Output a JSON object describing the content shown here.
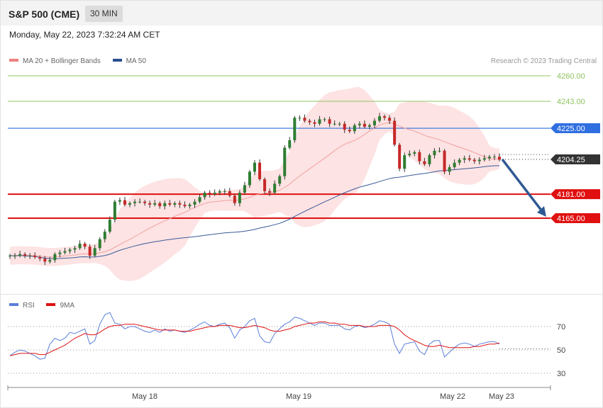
{
  "header": {
    "title": "S&P 500 (CME)",
    "timeframe": "30 MIN",
    "timestamp": "Monday, May 22, 2023 7:32:24 AM CET",
    "credit": "Research © 2023 Trading Central"
  },
  "legend_price": [
    {
      "label": "MA 20 + Bollinger Bands",
      "color": "#f08080"
    },
    {
      "label": "MA 50",
      "color": "#2a4d8f"
    }
  ],
  "legend_rsi": [
    {
      "label": "RSI",
      "color": "#5b7fd8"
    },
    {
      "label": "9MA",
      "color": "#e01010"
    }
  ],
  "colors": {
    "resistance_green": "#8fc460",
    "ma50_level_blue": "#2f6fe0",
    "support_red": "#e01010",
    "last_price_tag": "#333333",
    "arrow": "#2f5a94",
    "bb_fill": "#fde0e0",
    "bullish_candle": "#2e7d32",
    "bearish_candle": "#c62828"
  },
  "chart_data": [
    {
      "type": "candlestick",
      "title": "S&P 500 (CME) 30 MIN",
      "x_ticks": [
        "May 18",
        "May 19",
        "May 22",
        "May 23"
      ],
      "ylim": [
        4128,
        4268
      ],
      "levels": [
        {
          "value": 4260.0,
          "label": "4260.00",
          "kind": "resistance"
        },
        {
          "value": 4243.0,
          "label": "4243.00",
          "kind": "resistance"
        },
        {
          "value": 4225.0,
          "label": "4225.00",
          "kind": "pivot"
        },
        {
          "value": 4204.25,
          "label": "4204.25",
          "kind": "last_price"
        },
        {
          "value": 4181.0,
          "label": "4181.00",
          "kind": "support"
        },
        {
          "value": 4165.0,
          "label": "4165.00",
          "kind": "support"
        }
      ],
      "close_series": [
        4140,
        4140,
        4141,
        4140,
        4140,
        4139,
        4138,
        4136,
        4137,
        4141,
        4142,
        4143,
        4144,
        4145,
        4148,
        4146,
        4140,
        4145,
        4151,
        4156,
        4164,
        4176,
        4177,
        4174,
        4175,
        4176,
        4176,
        4175,
        4174,
        4175,
        4173,
        4175,
        4174,
        4175,
        4174,
        4173,
        4174,
        4176,
        4179,
        4182,
        4181,
        4182,
        4183,
        4183,
        4180,
        4175,
        4182,
        4187,
        4196,
        4202,
        4191,
        4183,
        4182,
        4188,
        4193,
        4212,
        4217,
        4232,
        4232,
        4230,
        4229,
        4228,
        4231,
        4231,
        4228,
        4228,
        4228,
        4224,
        4223,
        4227,
        4228,
        4226,
        4227,
        4230,
        4233,
        4232,
        4230,
        4214,
        4198,
        4207,
        4208,
        4209,
        4203,
        4201,
        4207,
        4210,
        4210,
        4196,
        4199,
        4202,
        4204,
        4205,
        4204,
        4203,
        4204,
        4205,
        4206,
        4206,
        4204
      ],
      "ma50_end": 4200,
      "prediction_arrow": {
        "from": 4204.25,
        "to": 4165.0
      }
    },
    {
      "type": "line",
      "title": "RSI",
      "series": [
        {
          "name": "RSI",
          "values": [
            45,
            48,
            50,
            49,
            47,
            45,
            42,
            43,
            55,
            60,
            58,
            60,
            65,
            64,
            66,
            68,
            55,
            58,
            72,
            80,
            82,
            73,
            72,
            68,
            70,
            70,
            68,
            66,
            65,
            67,
            65,
            68,
            66,
            67,
            66,
            65,
            67,
            69,
            72,
            74,
            71,
            70,
            72,
            73,
            69,
            60,
            67,
            70,
            75,
            77,
            62,
            57,
            56,
            64,
            68,
            72,
            74,
            78,
            77,
            75,
            73,
            71,
            73,
            73,
            71,
            71,
            71,
            68,
            67,
            70,
            71,
            69,
            70,
            72,
            75,
            74,
            72,
            55,
            47,
            55,
            56,
            57,
            49,
            46,
            55,
            58,
            58,
            44,
            48,
            52,
            55,
            56,
            55,
            53,
            55,
            56,
            57,
            57,
            55
          ]
        },
        {
          "name": "9MA",
          "values": [
            45,
            46,
            47,
            47,
            47,
            47,
            46,
            46,
            48,
            50,
            52,
            54,
            57,
            60,
            62,
            64,
            63,
            63,
            65,
            68,
            70,
            71,
            71,
            72,
            72,
            72,
            71,
            70,
            69,
            68,
            67,
            67,
            67,
            67,
            66,
            66,
            66,
            67,
            68,
            69,
            70,
            70,
            71,
            71,
            71,
            70,
            69,
            69,
            70,
            71,
            70,
            69,
            67,
            66,
            66,
            67,
            68,
            70,
            71,
            72,
            73,
            73,
            74,
            74,
            73,
            73,
            72,
            72,
            71,
            71,
            71,
            70,
            70,
            70,
            71,
            71,
            71,
            70,
            67,
            63,
            60,
            58,
            56,
            54,
            53,
            53,
            54,
            53,
            52,
            52,
            52,
            52,
            52,
            53,
            53,
            54,
            55,
            55,
            56
          ]
        }
      ],
      "y_ticks": [
        70,
        50,
        30
      ],
      "ylim": [
        10,
        90
      ]
    }
  ]
}
